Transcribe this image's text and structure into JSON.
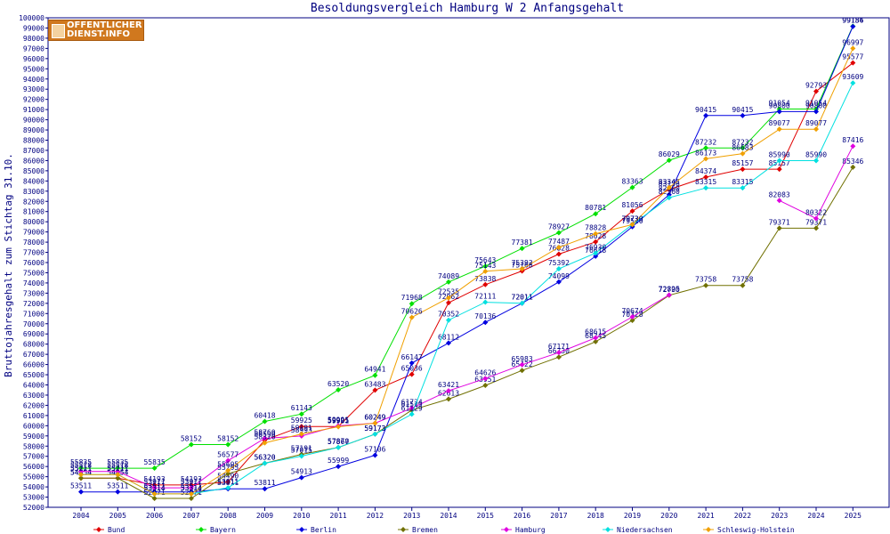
{
  "logo": {
    "line1": "OFFENTLICHER",
    "line2": "DIENST.INFO"
  },
  "chart_data": {
    "type": "line",
    "title": "Besoldungsvergleich Hamburg W 2 Anfangsgehalt",
    "xlabel": "",
    "ylabel": "Bruttojahresgehalt zum Stichtag 31.10.",
    "ylim": [
      52000,
      100000
    ],
    "ytick_step": 1000,
    "grid": false,
    "legend_position": "bottom",
    "categories": [
      "2004",
      "2005",
      "2006",
      "2007",
      "2008",
      "2009",
      "2010",
      "2011",
      "2012",
      "2013",
      "2014",
      "2015",
      "2016",
      "2017",
      "2018",
      "2019",
      "2020",
      "2021",
      "2022",
      "2023",
      "2024",
      "2025"
    ],
    "series": [
      {
        "name": "Bund",
        "color": "#e00000",
        "values": [
          54854,
          54854,
          54193,
          54193,
          54490,
          58590,
          59925,
          59925,
          63483,
          65036,
          72062,
          73838,
          75168,
          76828,
          78028,
          81056,
          83156,
          84374,
          85157,
          85157,
          92793,
          95577
        ]
      },
      {
        "name": "Bayern",
        "color": "#00e000",
        "values": [
          55835,
          55835,
          55835,
          58152,
          58152,
          60418,
          61143,
          63520,
          64941,
          71968,
          74089,
          75643,
          77381,
          78927,
          80781,
          83363,
          86029,
          87232,
          87232,
          91054,
          91054,
          99186
        ]
      },
      {
        "name": "Berlin",
        "color": "#0000e0",
        "values": [
          53511,
          53511,
          53511,
          53511,
          53811,
          53811,
          54913,
          55999,
          57106,
          66147,
          68112,
          70136,
          72011,
          74099,
          76618,
          79510,
          82660,
          90415,
          90415,
          90800,
          90800,
          99154
        ]
      },
      {
        "name": "Bremen",
        "color": "#707000",
        "values": [
          54854,
          54854,
          52871,
          52871,
          55295,
          56320,
          57191,
          57867,
          59173,
          61529,
          62613,
          63951,
          65422,
          66730,
          68245,
          70328,
          72790,
          73758,
          73758,
          79371,
          79371,
          85346
        ]
      },
      {
        "name": "Hamburg",
        "color": "#e000e0",
        "values": [
          55518,
          55518,
          53911,
          53911,
          56577,
          58760,
          58993,
          59991,
          60249,
          61724,
          63421,
          64626,
          65983,
          67171,
          68615,
          70674,
          72825,
          null,
          null,
          82083,
          80322,
          87416
        ]
      },
      {
        "name": "Niedersachsen",
        "color": "#00e0e0",
        "values": [
          55211,
          55211,
          53314,
          53314,
          53911,
          56320,
          57015,
          57870,
          59173,
          61129,
          70352,
          72111,
          72011,
          75392,
          76930,
          79730,
          82360,
          83315,
          83315,
          85990,
          85990,
          93609
        ]
      },
      {
        "name": "Schleswig-Holstein",
        "color": "#f0a000",
        "values": [
          55211,
          55211,
          53314,
          53314,
          55605,
          58320,
          59191,
          59901,
          60249,
          70626,
          72535,
          75143,
          75392,
          77487,
          78828,
          79730,
          83345,
          86173,
          86683,
          89077,
          89077,
          96997
        ]
      }
    ]
  }
}
